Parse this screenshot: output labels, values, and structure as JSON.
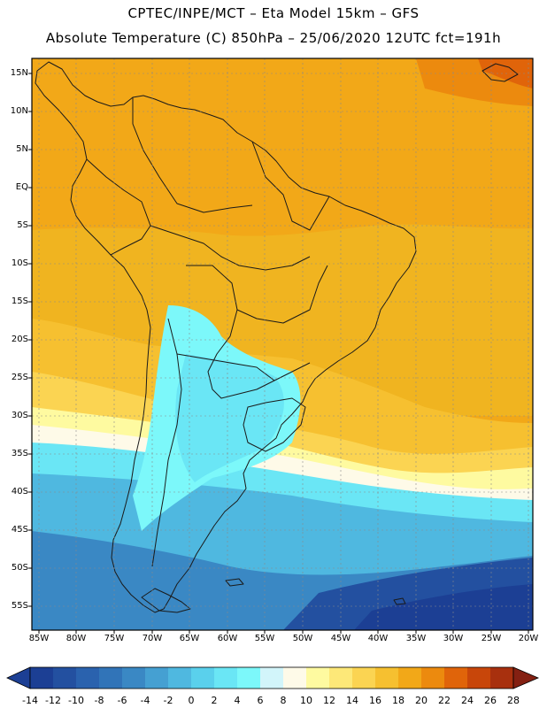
{
  "header": {
    "line1": "CPTEC/INPE/MCT –  Eta Model 15km – GFS",
    "line2": "Absolute Temperature (C) 850hPa – 25/06/2020 12UTC fct=191h"
  },
  "axes": {
    "lat_labels": [
      "15N",
      "10N",
      "5N",
      "EQ",
      "5S",
      "10S",
      "15S",
      "20S",
      "25S",
      "30S",
      "35S",
      "40S",
      "45S",
      "50S",
      "55S"
    ],
    "lon_labels": [
      "85W",
      "80W",
      "75W",
      "70W",
      "65W",
      "60W",
      "55W",
      "50W",
      "45W",
      "40W",
      "35W",
      "30W",
      "25W",
      "20W"
    ]
  },
  "colorbar": {
    "labels": [
      "-14",
      "-12",
      "-10",
      "-8",
      "-6",
      "-4",
      "-2",
      "0",
      "2",
      "4",
      "6",
      "8",
      "10",
      "12",
      "14",
      "16",
      "18",
      "20",
      "22",
      "24",
      "26",
      "28"
    ],
    "colors": [
      "#1c3f94",
      "#2350a0",
      "#2a62ae",
      "#3174b8",
      "#3a88c4",
      "#45a0d2",
      "#4fb8e0",
      "#5ad0ec",
      "#6ae6f5",
      "#7cf8fa",
      "#d2f5fa",
      "#fefae8",
      "#fefaa0",
      "#fde878",
      "#fbd452",
      "#f6c030",
      "#f2a818",
      "#ec8a0e",
      "#e0640a",
      "#c8460a",
      "#a8300e",
      "#842012"
    ]
  }
}
